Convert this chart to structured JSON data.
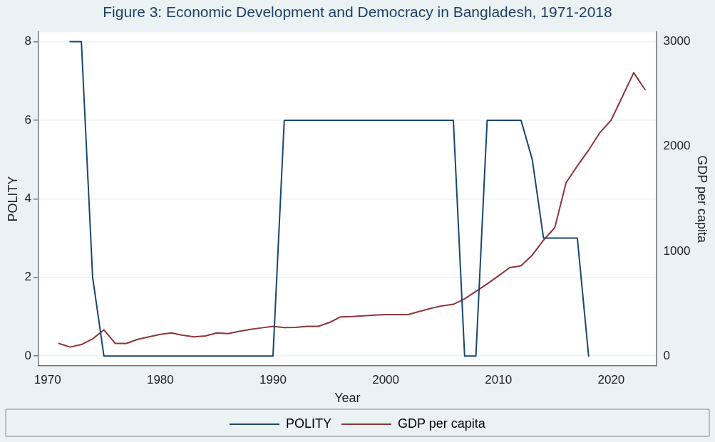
{
  "chart_data": {
    "type": "line",
    "title": "Figure 3: Economic Development and Democracy in Bangladesh, 1971-2018",
    "xlabel": "Year",
    "ylabel": "POLITY",
    "y2label": "GDP per capita",
    "xlim": [
      1969.2,
      2024
    ],
    "xticks": [
      1970,
      1980,
      1990,
      2000,
      2010,
      2020
    ],
    "ylim": [
      -0.25,
      8.24
    ],
    "yticks": [
      0,
      2,
      4,
      6,
      8
    ],
    "y2lim": [
      -93,
      3086
    ],
    "y2ticks": [
      0,
      1000,
      2000,
      3000
    ],
    "grid": "y",
    "legend": "bottom",
    "marker": "none",
    "line_style": "solid",
    "series": [
      {
        "name": "POLITY",
        "color": "#1a476f",
        "x": [
          1972,
          1973,
          1974,
          1975,
          1976,
          1977,
          1978,
          1979,
          1980,
          1981,
          1982,
          1983,
          1984,
          1985,
          1986,
          1987,
          1988,
          1989,
          1990,
          1991,
          1992,
          1993,
          1994,
          1995,
          1996,
          1997,
          1998,
          1999,
          2000,
          2001,
          2002,
          2003,
          2004,
          2005,
          2006,
          2007,
          2008,
          2009,
          2010,
          2011,
          2012,
          2013,
          2014,
          2015,
          2016,
          2017,
          2018
        ],
        "values": [
          8,
          8,
          2,
          0,
          0,
          0,
          0,
          0,
          0,
          0,
          0,
          0,
          0,
          0,
          0,
          0,
          0,
          0,
          0,
          6,
          6,
          6,
          6,
          6,
          6,
          6,
          6,
          6,
          6,
          6,
          6,
          6,
          6,
          6,
          6,
          0,
          0,
          6,
          6,
          6,
          6,
          5,
          3,
          3,
          3,
          3,
          0
        ]
      },
      {
        "name": "GDP per capita",
        "axis": "y2",
        "color": "#90353b",
        "x": [
          1971,
          1972,
          1973,
          1974,
          1975,
          1976,
          1977,
          1978,
          1979,
          1980,
          1981,
          1982,
          1983,
          1984,
          1985,
          1986,
          1987,
          1988,
          1989,
          1990,
          1991,
          1992,
          1993,
          1994,
          1995,
          1996,
          1997,
          1998,
          1999,
          2000,
          2001,
          2002,
          2003,
          2004,
          2005,
          2006,
          2007,
          2008,
          2009,
          2010,
          2011,
          2012,
          2013,
          2014,
          2015,
          2016,
          2017,
          2018,
          2019,
          2020,
          2021,
          2022,
          2023
        ],
        "values": [
          121,
          86,
          110,
          164,
          250,
          121,
          121,
          160,
          183,
          207,
          221,
          198,
          183,
          192,
          221,
          214,
          236,
          255,
          269,
          283,
          271,
          273,
          283,
          283,
          319,
          374,
          376,
          383,
          390,
          395,
          395,
          395,
          426,
          455,
          479,
          493,
          545,
          617,
          688,
          764,
          843,
          860,
          962,
          1105,
          1224,
          1652,
          1812,
          1962,
          2129,
          2248,
          2474,
          2700,
          2540
        ]
      }
    ]
  }
}
